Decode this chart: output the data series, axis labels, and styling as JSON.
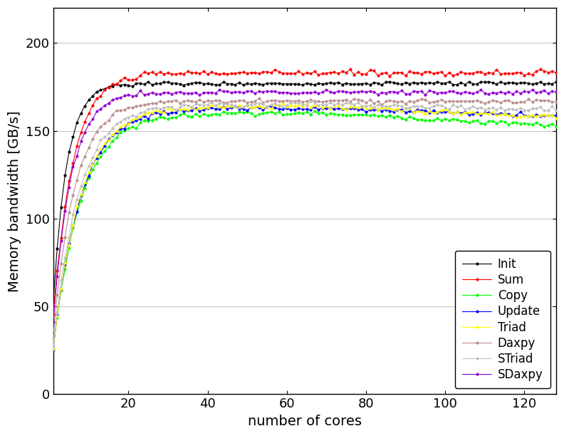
{
  "title": "",
  "xlabel": "number of cores",
  "ylabel": "Memory bandwidth [GB/s]",
  "xlim": [
    1,
    128
  ],
  "ylim": [
    0,
    220
  ],
  "yticks": [
    0,
    50,
    100,
    150,
    200
  ],
  "xticks": [
    20,
    40,
    60,
    80,
    100,
    120
  ],
  "background_color": "#ffffff",
  "series": [
    {
      "name": "Init",
      "color": "#000000",
      "sat_bw": 177,
      "start_bw": 10,
      "knee": 3.5,
      "droop_start": 100,
      "droop_rate": 0.0,
      "noise": 0.5,
      "seed": 0
    },
    {
      "name": "Sum",
      "color": "#ff0000",
      "sat_bw": 183,
      "start_bw": 14,
      "knee": 5.0,
      "droop_start": 100,
      "droop_rate": 0.0,
      "noise": 0.8,
      "seed": 10
    },
    {
      "name": "Copy",
      "color": "#00ff00",
      "sat_bw": 160,
      "start_bw": 5,
      "knee": 7.0,
      "droop_start": 70,
      "droop_rate": 0.12,
      "noise": 0.6,
      "seed": 20
    },
    {
      "name": "Update",
      "color": "#0000ff",
      "sat_bw": 163,
      "start_bw": 5,
      "knee": 7.0,
      "droop_start": 70,
      "droop_rate": 0.08,
      "noise": 0.6,
      "seed": 30
    },
    {
      "name": "Triad",
      "color": "#ffff00",
      "sat_bw": 164,
      "start_bw": 5,
      "knee": 7.0,
      "droop_start": 70,
      "droop_rate": 0.1,
      "noise": 0.7,
      "seed": 40
    },
    {
      "name": "Daxpy",
      "color": "#bc8f8f",
      "sat_bw": 167,
      "start_bw": 8,
      "knee": 5.5,
      "droop_start": 100,
      "droop_rate": 0.0,
      "noise": 0.6,
      "seed": 50
    },
    {
      "name": "STriad",
      "color": "#c0c0c0",
      "sat_bw": 165,
      "start_bw": 5,
      "knee": 6.5,
      "droop_start": 70,
      "droop_rate": 0.05,
      "noise": 0.7,
      "seed": 60
    },
    {
      "name": "SDaxpy",
      "color": "#9400d3",
      "sat_bw": 172,
      "start_bw": 8,
      "knee": 4.5,
      "droop_start": 100,
      "droop_rate": 0.0,
      "noise": 0.6,
      "seed": 70
    }
  ],
  "figsize": [
    7.92,
    6.12
  ],
  "dpi": 100,
  "linewidth": 0.8,
  "markersize": 3.0,
  "grid_color": "#c8c8c8",
  "font_size": 14
}
